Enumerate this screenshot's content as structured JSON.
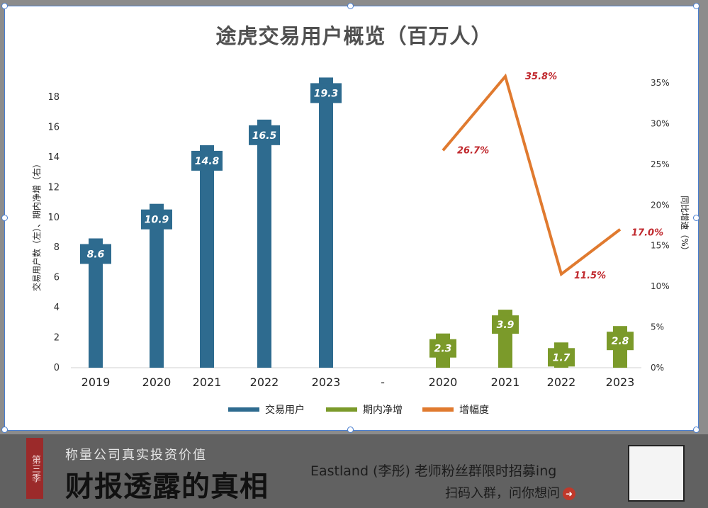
{
  "chart_data": {
    "title": "途虎交易用户概览（百万人）",
    "left_axis_label": "交易用户数（左）、期内净增（右）",
    "right_axis_label": "同比增速（%）",
    "y_left": {
      "min": 0,
      "max": 18,
      "ticks": [
        "0",
        "2",
        "4",
        "6",
        "8",
        "10",
        "12",
        "14",
        "16",
        "18"
      ]
    },
    "y_right": {
      "min": 0,
      "max": 35,
      "ticks": [
        "0%",
        "5%",
        "10%",
        "15%",
        "20%",
        "25%",
        "30%",
        "35%"
      ]
    },
    "categories": [
      "2019",
      "2020",
      "2021",
      "2022",
      "2023",
      "-",
      "2020",
      "2021",
      "2022",
      "2023"
    ],
    "series": [
      {
        "name": "交易用户",
        "type": "bar",
        "color": "#2e6b8f",
        "x": [
          "2019",
          "2020",
          "2021",
          "2022",
          "2023"
        ],
        "values": [
          8.6,
          10.9,
          14.8,
          16.5,
          19.3
        ],
        "labels": [
          "8.6",
          "10.9",
          "14.8",
          "16.5",
          "19.3"
        ]
      },
      {
        "name": "期内净增",
        "type": "bar",
        "color": "#7b9a2a",
        "x": [
          "2020",
          "2021",
          "2022",
          "2023"
        ],
        "values": [
          2.3,
          3.9,
          1.7,
          2.8
        ],
        "labels": [
          "2.3",
          "3.9",
          "1.7",
          "2.8"
        ]
      },
      {
        "name": "增幅度",
        "type": "line",
        "color": "#e07a2f",
        "x": [
          "2020",
          "2021",
          "2022",
          "2023"
        ],
        "values": [
          26.7,
          35.8,
          11.5,
          17.0
        ],
        "labels": [
          "26.7%",
          "35.8%",
          "11.5%",
          "17.0%"
        ]
      }
    ],
    "legend": [
      "交易用户",
      "期内净增",
      "增幅度"
    ],
    "legend_position": "bottom"
  },
  "footer": {
    "season": "第三季",
    "slogan_small": "称量公司真实投资价值",
    "slogan_big": "财报透露的真相",
    "promo_line1": "Eastland (李彤) 老师粉丝群限时招募ing",
    "promo_line2": "扫码入群，问你想问"
  }
}
